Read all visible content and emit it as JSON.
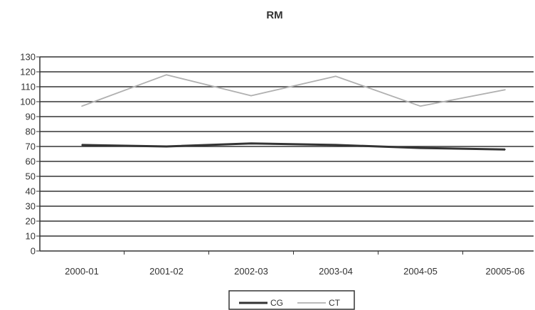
{
  "chart_data": {
    "type": "line",
    "title": "RM",
    "xlabel": "",
    "ylabel": "",
    "categories": [
      "2000-01",
      "2001-02",
      "2002-03",
      "2003-04",
      "2004-05",
      "20005-06"
    ],
    "ylim": [
      0,
      130
    ],
    "yticks": [
      0,
      10,
      20,
      30,
      40,
      50,
      60,
      70,
      80,
      90,
      100,
      110,
      120,
      130
    ],
    "grid": true,
    "legend_position": "bottom",
    "series": [
      {
        "name": "CG",
        "color": "#333333",
        "values": [
          71,
          70,
          72,
          71,
          69,
          68
        ]
      },
      {
        "name": "CT",
        "color": "#b0b0b0",
        "values": [
          97,
          118,
          104,
          117,
          97,
          108
        ]
      }
    ]
  }
}
